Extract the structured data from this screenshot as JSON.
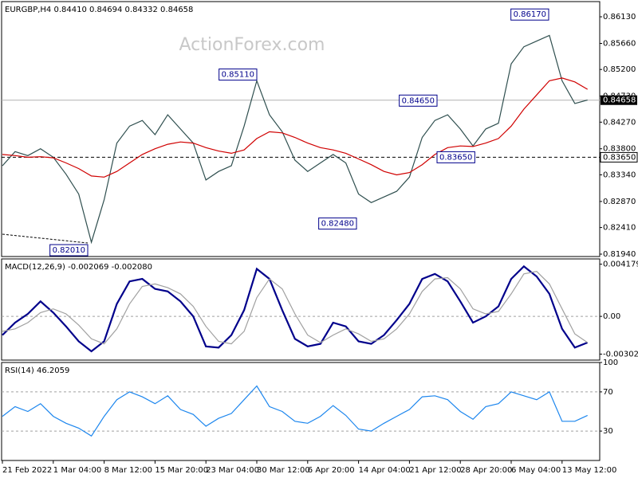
{
  "chart_data": [
    {
      "type": "line",
      "title": "EURGBP,H4  0.84410 0.84694 0.84332 0.84658",
      "watermark": "ActionForex.com",
      "ylim": [
        0.81898,
        0.86398
      ],
      "yticks": [
        {
          "value": 0.8613,
          "label": "0.86130"
        },
        {
          "value": 0.8566,
          "label": "0.85660"
        },
        {
          "value": 0.852,
          "label": "0.85200"
        },
        {
          "value": 0.8473,
          "label": "0.84730"
        },
        {
          "value": 0.8427,
          "label": "0.84270"
        },
        {
          "value": 0.838,
          "label": "0.83800"
        },
        {
          "value": 0.8334,
          "label": "0.83340"
        },
        {
          "value": 0.8287,
          "label": "0.82870"
        },
        {
          "value": 0.8241,
          "label": "0.82410"
        },
        {
          "value": 0.8194,
          "label": "0.81940"
        }
      ],
      "grid": false,
      "series": [
        {
          "color": "#2f4f4f",
          "values": [
            0.835,
            0.8375,
            0.8368,
            0.838,
            0.8365,
            0.8335,
            0.83,
            0.8215,
            0.829,
            0.839,
            0.842,
            0.843,
            0.8405,
            0.844,
            0.8415,
            0.839,
            0.8325,
            0.834,
            0.835,
            0.842,
            0.85,
            0.844,
            0.841,
            0.836,
            0.834,
            0.8355,
            0.837,
            0.8355,
            0.83,
            0.8285,
            0.8295,
            0.8305,
            0.833,
            0.84,
            0.843,
            0.844,
            0.8415,
            0.8385,
            0.8415,
            0.8425,
            0.853,
            0.856,
            0.857,
            0.858,
            0.85,
            0.846,
            0.8466
          ]
        },
        {
          "color": "#d00000",
          "values": [
            0.837,
            0.8368,
            0.8365,
            0.8366,
            0.8364,
            0.8355,
            0.8345,
            0.8332,
            0.833,
            0.834,
            0.8355,
            0.837,
            0.838,
            0.8388,
            0.8392,
            0.839,
            0.8382,
            0.8376,
            0.8372,
            0.8378,
            0.8398,
            0.841,
            0.8408,
            0.84,
            0.839,
            0.8382,
            0.8378,
            0.8372,
            0.8362,
            0.8352,
            0.834,
            0.8334,
            0.8338,
            0.8352,
            0.837,
            0.8382,
            0.8385,
            0.8384,
            0.839,
            0.8398,
            0.842,
            0.845,
            0.8475,
            0.85,
            0.8505,
            0.8498,
            0.8485
          ]
        }
      ],
      "last_price": {
        "value": 0.84658,
        "label": "0.84658"
      },
      "hline": {
        "value": 0.8365,
        "label": "0.83650"
      },
      "annotations": [
        {
          "value": 0.8617,
          "label": "0.86170"
        },
        {
          "value": 0.8511,
          "label": "0.85110"
        },
        {
          "value": 0.8465,
          "label": "0.84650"
        },
        {
          "value": 0.8365,
          "label": "0.83650"
        },
        {
          "value": 0.8248,
          "label": "0.82480"
        },
        {
          "value": 0.8201,
          "label": "0.82010"
        }
      ]
    },
    {
      "type": "line",
      "title": "MACD(12,26,9) -0.002069 -0.002080",
      "ylim": [
        -0.0035,
        0.0046
      ],
      "yticks": [
        0.004179,
        {
          "value": 0,
          "label": "0.00"
        },
        -0.003022
      ],
      "levels": [
        0
      ],
      "series": [
        {
          "color": "#00008b",
          "values": [
            -0.0015,
            -0.0005,
            0.0002,
            0.0012,
            0.0003,
            -0.0008,
            -0.002,
            -0.0028,
            -0.002,
            0.001,
            0.0028,
            0.003,
            0.0022,
            0.002,
            0.0012,
            0.0,
            -0.0024,
            -0.0025,
            -0.0015,
            0.0005,
            0.0038,
            0.003,
            0.0005,
            -0.0018,
            -0.0024,
            -0.0022,
            -0.0005,
            -0.0008,
            -0.002,
            -0.0022,
            -0.0015,
            -0.0003,
            0.001,
            0.003,
            0.0034,
            0.0028,
            0.0012,
            -0.0005,
            0.0,
            0.0008,
            0.003,
            0.004,
            0.0032,
            0.0018,
            -0.001,
            -0.0025,
            -0.0021
          ]
        },
        {
          "color": "#a0a0a0",
          "values": [
            -0.0012,
            -0.001,
            -0.0005,
            0.0003,
            0.0006,
            0.0002,
            -0.0007,
            -0.0018,
            -0.0022,
            -0.001,
            0.001,
            0.0024,
            0.0026,
            0.0023,
            0.0018,
            0.0008,
            -0.0008,
            -0.002,
            -0.0022,
            -0.0012,
            0.0015,
            0.003,
            0.0022,
            0.0002,
            -0.0015,
            -0.0021,
            -0.0015,
            -0.001,
            -0.0014,
            -0.002,
            -0.0018,
            -0.001,
            0.0002,
            0.002,
            0.003,
            0.0031,
            0.0022,
            0.0006,
            0.0002,
            0.0004,
            0.0018,
            0.0034,
            0.0036,
            0.0026,
            0.0006,
            -0.0014,
            -0.0021
          ]
        }
      ]
    },
    {
      "type": "line",
      "title": "RSI(14) 46.2059",
      "ylim": [
        0,
        100
      ],
      "yticks": [
        100,
        70,
        30
      ],
      "levels": [
        70,
        30
      ],
      "series": [
        {
          "color": "#1c86ee",
          "values": [
            45,
            55,
            50,
            58,
            45,
            38,
            33,
            25,
            45,
            62,
            70,
            65,
            58,
            66,
            52,
            47,
            35,
            43,
            48,
            62,
            76,
            55,
            50,
            40,
            38,
            45,
            56,
            46,
            32,
            30,
            38,
            45,
            52,
            65,
            66,
            62,
            50,
            42,
            55,
            58,
            70,
            66,
            62,
            70,
            40,
            40,
            46
          ]
        }
      ],
      "categories": [
        "21 Feb 2022",
        null,
        null,
        null,
        "1 Mar 04:00",
        null,
        null,
        null,
        "8 Mar 12:00",
        null,
        null,
        null,
        "15 Mar 20:00",
        null,
        null,
        null,
        "23 Mar 04:00",
        null,
        null,
        null,
        "30 Mar 12:00",
        null,
        null,
        null,
        "6 Apr 20:00",
        null,
        null,
        null,
        "14 Apr 04:00",
        null,
        null,
        null,
        "21 Apr 12:00",
        null,
        null,
        null,
        "28 Apr 20:00",
        null,
        null,
        null,
        "6 May 04:00",
        null,
        null,
        null,
        "13 May 12:00",
        null,
        null
      ]
    }
  ]
}
